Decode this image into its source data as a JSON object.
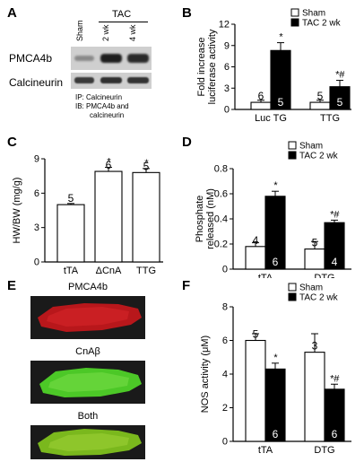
{
  "panels": {
    "A": {
      "letter": "A",
      "lanes": [
        "Sham",
        "2 wk",
        "4 wk"
      ],
      "group_label": "TAC",
      "rows": [
        "PMCA4b",
        "Calcineurin"
      ],
      "ip_note": "IP: Calcineurin",
      "ib_note_line1": "IB: PMCA4b and",
      "ib_note_line2": "calcineurin"
    },
    "B": {
      "letter": "B"
    },
    "C": {
      "letter": "C"
    },
    "D": {
      "letter": "D"
    },
    "E": {
      "letter": "E",
      "titles": [
        "PMCA4b",
        "CnAβ",
        "Both"
      ],
      "colors": {
        "red": "#c8191e",
        "green": "#55d42a",
        "merge": "#7ec51f"
      }
    },
    "F": {
      "letter": "F"
    }
  },
  "chart_data": [
    {
      "id": "B",
      "type": "bar",
      "ylabel": "Fold increase\nluciferase activity",
      "categories": [
        "Luc TG",
        "TTG"
      ],
      "ylim": [
        0,
        12
      ],
      "yticks": [
        0,
        3,
        6,
        9,
        12
      ],
      "legend": [
        "Sham",
        "TAC 2 wk"
      ],
      "legend_position": "top-right",
      "series": [
        {
          "name": "Sham",
          "color": "#ffffff",
          "values": [
            1.0,
            1.0
          ],
          "errors": [
            0.3,
            0.3
          ],
          "n": [
            "6",
            "5"
          ],
          "marks": [
            "",
            ""
          ]
        },
        {
          "name": "TAC 2 wk",
          "color": "#000000",
          "values": [
            8.3,
            3.2
          ],
          "errors": [
            1.1,
            0.9
          ],
          "n": [
            "5",
            "5"
          ],
          "marks": [
            "*",
            "*#"
          ]
        }
      ]
    },
    {
      "id": "C",
      "type": "bar",
      "ylabel": "HW/BW (mg/g)",
      "categories": [
        "tTA",
        "ΔCnA",
        "TTG"
      ],
      "ylim": [
        0,
        9
      ],
      "yticks": [
        0,
        3,
        6,
        9
      ],
      "series": [
        {
          "name": "",
          "color": "#ffffff",
          "values": [
            5.0,
            7.9,
            7.8
          ],
          "errors": [
            0.1,
            0.35,
            0.35
          ],
          "n": [
            "5",
            "6",
            "5"
          ],
          "marks": [
            "",
            "*",
            "*"
          ]
        }
      ]
    },
    {
      "id": "D",
      "type": "bar",
      "ylabel": "Phosphate\nreleased (nM)",
      "categories": [
        "tTA",
        "DTG"
      ],
      "ylim": [
        0,
        0.8
      ],
      "yticks": [
        0,
        0.2,
        0.4,
        0.6,
        0.8
      ],
      "legend": [
        "Sham",
        "TAC 2 wk"
      ],
      "legend_position": "top-right",
      "series": [
        {
          "name": "Sham",
          "color": "#ffffff",
          "values": [
            0.18,
            0.16
          ],
          "errors": [
            0.03,
            0.06
          ],
          "n": [
            "4",
            "5"
          ],
          "marks": [
            "",
            ""
          ]
        },
        {
          "name": "TAC 2 wk",
          "color": "#000000",
          "values": [
            0.58,
            0.37
          ],
          "errors": [
            0.04,
            0.02
          ],
          "n": [
            "6",
            "4"
          ],
          "marks": [
            "*",
            "*#"
          ]
        }
      ]
    },
    {
      "id": "F",
      "type": "bar",
      "ylabel": "NOS activity (μM)",
      "categories": [
        "tTA",
        "DTG"
      ],
      "ylim": [
        0,
        8
      ],
      "yticks": [
        0,
        2,
        4,
        6,
        8
      ],
      "legend": [
        "Sham",
        "TAC 2 wk"
      ],
      "legend_position": "top-right",
      "series": [
        {
          "name": "Sham",
          "color": "#ffffff",
          "values": [
            6.0,
            5.3
          ],
          "errors": [
            0.4,
            1.1
          ],
          "n": [
            "5",
            "3"
          ],
          "marks": [
            "",
            ""
          ]
        },
        {
          "name": "TAC 2 wk",
          "color": "#000000",
          "values": [
            4.3,
            3.1
          ],
          "errors": [
            0.35,
            0.3
          ],
          "n": [
            "6",
            "6"
          ],
          "marks": [
            "*",
            "*#"
          ]
        }
      ]
    }
  ]
}
